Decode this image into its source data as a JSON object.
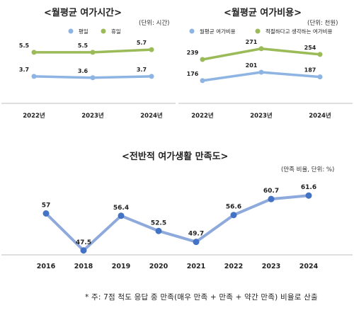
{
  "chart_data": [
    {
      "type": "line",
      "title": "<월평균 여가시간>",
      "unit": "(단위: 시간)",
      "categories": [
        "2022년",
        "2023년",
        "2024년"
      ],
      "series": [
        {
          "name": "평일",
          "values": [
            3.7,
            3.6,
            3.7
          ],
          "color": "#8DB4E2"
        },
        {
          "name": "휴일",
          "values": [
            5.5,
            5.5,
            5.7
          ],
          "color": "#9BBB59"
        }
      ],
      "ylim": [
        2.0,
        6.5
      ],
      "grid": false,
      "legend": "top"
    },
    {
      "type": "line",
      "title": "<월평균 여가비용>",
      "unit": "(단위: 천원)",
      "categories": [
        "2022년",
        "2023년",
        "2024년"
      ],
      "series": [
        {
          "name": "월평균 여가비용",
          "values": [
            176,
            201,
            187
          ],
          "color": "#8DB4E2"
        },
        {
          "name": "적절하다고 생각하는 여가비용",
          "values": [
            239,
            271,
            254
          ],
          "color": "#9BBB59"
        }
      ],
      "ylim": [
        100,
        300
      ],
      "grid": false,
      "legend": "top"
    },
    {
      "type": "line",
      "title": "<전반적 여가생활 만족도>",
      "unit": "(만족 비율, 단위: %)",
      "categories": [
        "2016",
        "2018",
        "2019",
        "2020",
        "2021",
        "2022",
        "2023",
        "2024"
      ],
      "series": [
        {
          "values": [
            57,
            47.5,
            56.4,
            52.5,
            49.7,
            56.6,
            60.7,
            61.6
          ],
          "color": "#8EA9DB"
        }
      ],
      "ylim": [
        40,
        70
      ],
      "grid": false
    }
  ],
  "note": "* 주: 7점 척도 응답 중 만족(매우 만족 + 만족 + 약간 만족) 비율로 산출"
}
